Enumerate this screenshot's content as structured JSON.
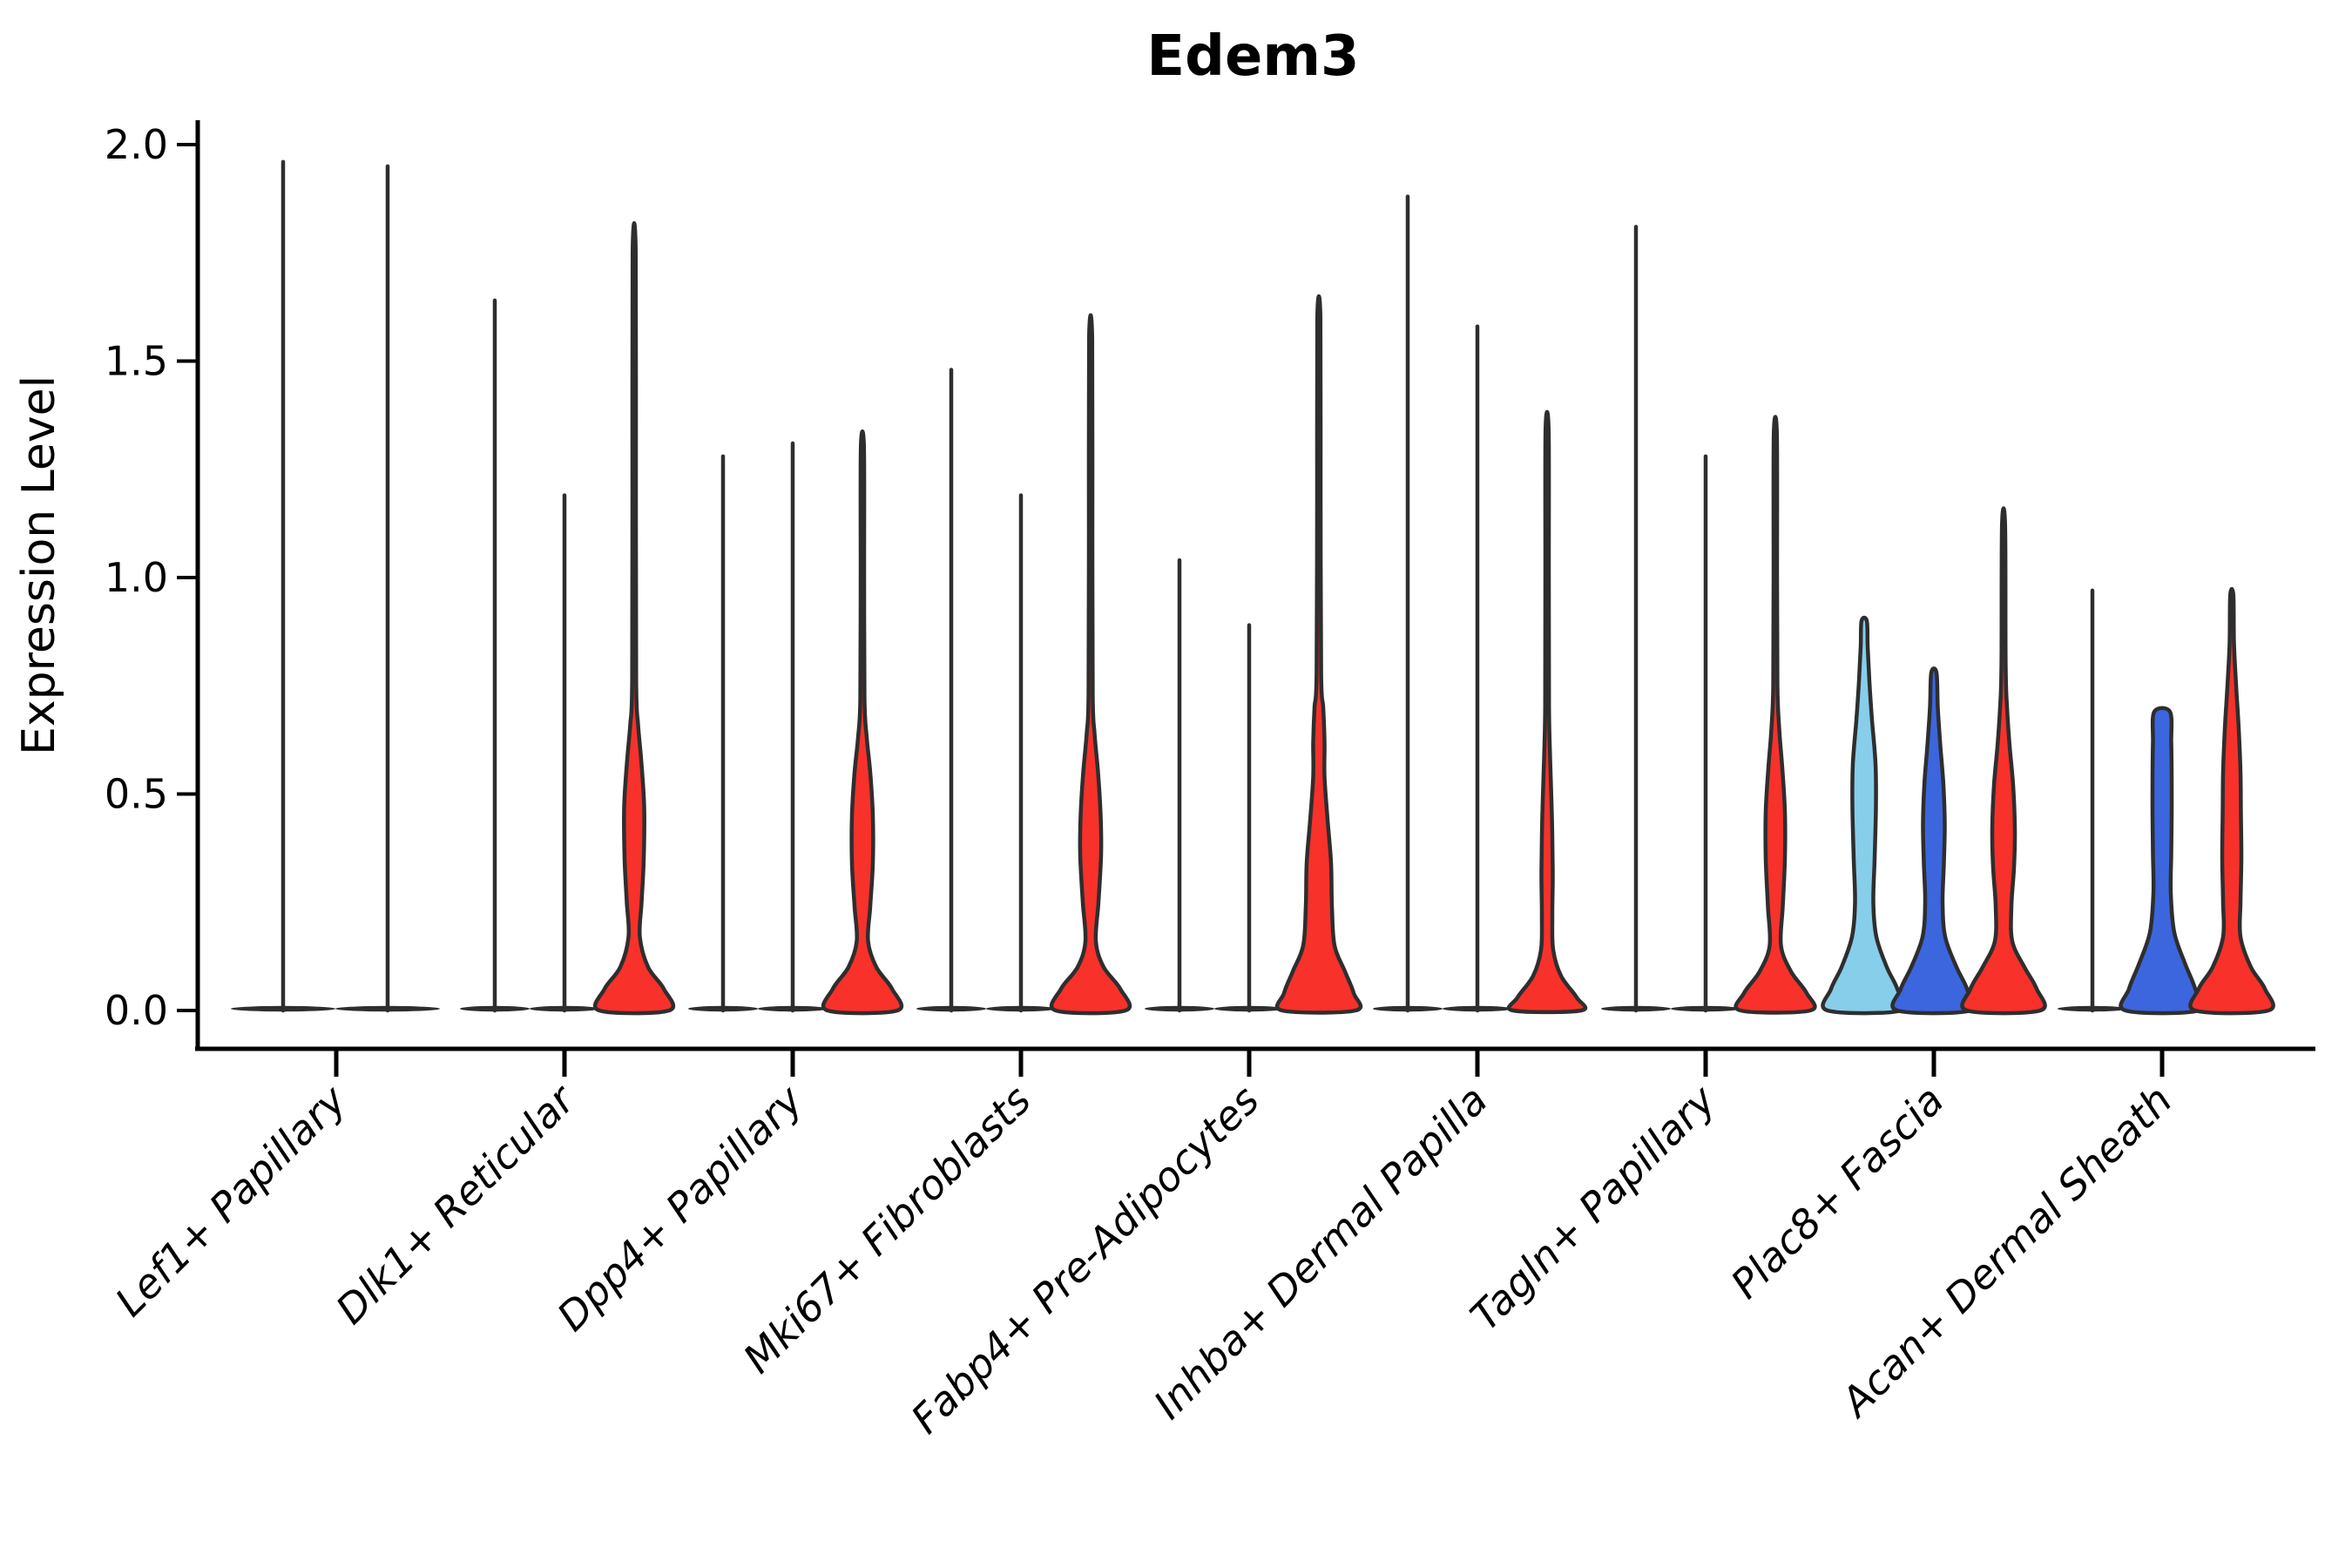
{
  "title": "Edem3",
  "axes": {
    "y_label": "Expression Level",
    "y_tick_labels": [
      "0.0",
      "0.5",
      "1.0",
      "1.5",
      "2.0"
    ],
    "y_tick_values": [
      0,
      0.5,
      1.0,
      1.5,
      2.0
    ],
    "x_categories": [
      "Lef1+ Papillary",
      "Dlk1+ Reticular",
      "Dpp4+ Papillary",
      "Mki67+ Fibroblasts",
      "Fabp4+ Pre-Adipocytes",
      "Inhba+ Dermal Papilla",
      "Tagln+ Papillary",
      "Plac8+ Fascia",
      "Acan+ Dermal Sheath"
    ],
    "ylim": [
      0,
      2.0
    ]
  },
  "colors": {
    "red": "#f8312b",
    "blue": "#3c66de",
    "lightblue": "#87ceeb",
    "dark": "#2e2e2e",
    "axis": "#000000"
  },
  "chart_data": {
    "type": "violin",
    "title": "Edem3",
    "ylabel": "Expression Level",
    "ylim": [
      0,
      2.0
    ],
    "grid": false,
    "legend": "none",
    "groups": [
      {
        "label": "Lef1+ Papillary",
        "violins": [
          {
            "kind": "line",
            "color": "dark",
            "max": 1.96,
            "base_halfwidth": 60,
            "offset": -61
          },
          {
            "kind": "line",
            "color": "dark",
            "max": 1.95,
            "base_halfwidth": 60,
            "offset": 59
          }
        ]
      },
      {
        "label": "Dlk1+ Reticular",
        "violins": [
          {
            "kind": "line",
            "color": "dark",
            "max": 1.64,
            "base_halfwidth": 40,
            "offset": -80
          },
          {
            "kind": "line",
            "color": "dark",
            "max": 1.19,
            "base_halfwidth": 40,
            "offset": 0
          },
          {
            "kind": "violin",
            "color": "red",
            "max": 1.75,
            "offset": 80,
            "profile": [
              [
                0,
                40
              ],
              [
                0.05,
                34
              ],
              [
                0.1,
                16
              ],
              [
                0.17,
                6.5
              ],
              [
                0.25,
                8.5
              ],
              [
                0.35,
                11
              ],
              [
                0.47,
                11.5
              ],
              [
                0.58,
                8
              ],
              [
                0.66,
                4.5
              ],
              [
                0.76,
                2.3
              ],
              [
                1.2,
                2
              ],
              [
                1.75,
                1.8
              ]
            ]
          }
        ]
      },
      {
        "label": "Dpp4+ Papillary",
        "violins": [
          {
            "kind": "line",
            "color": "dark",
            "max": 1.28,
            "base_halfwidth": 40,
            "offset": -80
          },
          {
            "kind": "line",
            "color": "dark",
            "max": 1.31,
            "base_halfwidth": 40,
            "offset": 0
          },
          {
            "kind": "violin",
            "color": "red",
            "max": 1.3,
            "offset": 80,
            "profile": [
              [
                0,
                40
              ],
              [
                0.05,
                34
              ],
              [
                0.1,
                16
              ],
              [
                0.16,
                6.5
              ],
              [
                0.24,
                9
              ],
              [
                0.34,
                12
              ],
              [
                0.45,
                12
              ],
              [
                0.55,
                9
              ],
              [
                0.63,
                5
              ],
              [
                0.72,
                2.4
              ],
              [
                1.0,
                2
              ],
              [
                1.3,
                1.8
              ]
            ]
          }
        ]
      },
      {
        "label": "Mki67+ Fibroblasts",
        "violins": [
          {
            "kind": "line",
            "color": "dark",
            "max": 1.48,
            "base_halfwidth": 40,
            "offset": -80
          },
          {
            "kind": "line",
            "color": "dark",
            "max": 1.19,
            "base_halfwidth": 40,
            "offset": 0
          },
          {
            "kind": "violin",
            "color": "red",
            "max": 1.55,
            "offset": 80,
            "profile": [
              [
                0,
                40
              ],
              [
                0.05,
                34
              ],
              [
                0.1,
                15
              ],
              [
                0.16,
                6
              ],
              [
                0.25,
                9
              ],
              [
                0.36,
                12
              ],
              [
                0.45,
                11.5
              ],
              [
                0.55,
                8.5
              ],
              [
                0.64,
                4.5
              ],
              [
                0.73,
                2.4
              ],
              [
                1.1,
                2
              ],
              [
                1.55,
                1.8
              ]
            ]
          }
        ]
      },
      {
        "label": "Fabp4+ Pre-Adipocytes",
        "violins": [
          {
            "kind": "line",
            "color": "dark",
            "max": 1.04,
            "base_halfwidth": 40,
            "offset": -80
          },
          {
            "kind": "line",
            "color": "dark",
            "max": 0.89,
            "base_halfwidth": 40,
            "offset": 0
          },
          {
            "kind": "violin",
            "color": "red",
            "max": 1.6,
            "offset": 80,
            "profile": [
              [
                0,
                42
              ],
              [
                0.04,
                40
              ],
              [
                0.09,
                30
              ],
              [
                0.15,
                18
              ],
              [
                0.24,
                15
              ],
              [
                0.34,
                14
              ],
              [
                0.44,
                10
              ],
              [
                0.54,
                6.5
              ],
              [
                0.62,
                6.5
              ],
              [
                0.7,
                5
              ],
              [
                0.78,
                2.6
              ],
              [
                1.2,
                2
              ],
              [
                1.6,
                1.8
              ]
            ]
          }
        ]
      },
      {
        "label": "Inhba+ Dermal Papilla",
        "violins": [
          {
            "kind": "line",
            "color": "dark",
            "max": 1.88,
            "base_halfwidth": 40,
            "offset": -80
          },
          {
            "kind": "line",
            "color": "dark",
            "max": 1.58,
            "base_halfwidth": 40,
            "offset": 0
          },
          {
            "kind": "violin",
            "color": "red",
            "max": 1.34,
            "offset": 80,
            "profile": [
              [
                0,
                39
              ],
              [
                0.03,
                34
              ],
              [
                0.08,
                16
              ],
              [
                0.14,
                7
              ],
              [
                0.22,
                6
              ],
              [
                0.32,
                6.5
              ],
              [
                0.45,
                5.5
              ],
              [
                0.58,
                3.5
              ],
              [
                0.7,
                2.2
              ],
              [
                1.0,
                2
              ],
              [
                1.34,
                1.8
              ]
            ]
          }
        ]
      },
      {
        "label": "Tagln+ Papillary",
        "violins": [
          {
            "kind": "line",
            "color": "dark",
            "max": 1.81,
            "base_halfwidth": 40,
            "offset": -80
          },
          {
            "kind": "line",
            "color": "dark",
            "max": 1.28,
            "base_halfwidth": 40,
            "offset": 0
          },
          {
            "kind": "violin",
            "color": "red",
            "max": 1.33,
            "offset": 80,
            "profile": [
              [
                0,
                40
              ],
              [
                0.04,
                36
              ],
              [
                0.09,
                18
              ],
              [
                0.15,
                6.5
              ],
              [
                0.24,
                8.5
              ],
              [
                0.35,
                11
              ],
              [
                0.46,
                11
              ],
              [
                0.56,
                8
              ],
              [
                0.65,
                4.5
              ],
              [
                0.75,
                2.4
              ],
              [
                1.0,
                2
              ],
              [
                1.33,
                1.8
              ]
            ]
          }
        ]
      },
      {
        "label": "Plac8+ Fascia",
        "violins": [
          {
            "kind": "violin",
            "color": "lightblue",
            "max": 0.9,
            "offset": -80,
            "profile": [
              [
                0,
                42
              ],
              [
                0.05,
                38
              ],
              [
                0.1,
                26
              ],
              [
                0.17,
                14
              ],
              [
                0.25,
                10.5
              ],
              [
                0.35,
                12
              ],
              [
                0.47,
                13.5
              ],
              [
                0.57,
                13
              ],
              [
                0.67,
                9
              ],
              [
                0.76,
                6
              ],
              [
                0.84,
                4
              ],
              [
                0.9,
                3
              ]
            ]
          },
          {
            "kind": "violin",
            "color": "blue",
            "max": 0.78,
            "offset": 0,
            "profile": [
              [
                0,
                42
              ],
              [
                0.05,
                38
              ],
              [
                0.1,
                26
              ],
              [
                0.17,
                13
              ],
              [
                0.25,
                10
              ],
              [
                0.34,
                11.5
              ],
              [
                0.43,
                12.5
              ],
              [
                0.52,
                11
              ],
              [
                0.61,
                7.5
              ],
              [
                0.7,
                4.5
              ],
              [
                0.78,
                3
              ]
            ]
          },
          {
            "kind": "violin",
            "color": "red",
            "max": 1.12,
            "offset": 80,
            "profile": [
              [
                0,
                42
              ],
              [
                0.05,
                38
              ],
              [
                0.1,
                24
              ],
              [
                0.16,
                10
              ],
              [
                0.24,
                9
              ],
              [
                0.33,
                12
              ],
              [
                0.42,
                13
              ],
              [
                0.52,
                11
              ],
              [
                0.61,
                7
              ],
              [
                0.7,
                4
              ],
              [
                0.8,
                2.4
              ],
              [
                1.12,
                1.8
              ]
            ]
          }
        ]
      },
      {
        "label": "Acan+ Dermal Sheath",
        "violins": [
          {
            "kind": "line",
            "color": "dark",
            "max": 0.97,
            "base_halfwidth": 40,
            "offset": -80
          },
          {
            "kind": "violin",
            "color": "blue",
            "max": 0.69,
            "offset": 0,
            "profile": [
              [
                0,
                42
              ],
              [
                0.05,
                38
              ],
              [
                0.11,
                26
              ],
              [
                0.18,
                14
              ],
              [
                0.27,
                10
              ],
              [
                0.36,
                10.5
              ],
              [
                0.45,
                11
              ],
              [
                0.54,
                11
              ],
              [
                0.62,
                10.5
              ],
              [
                0.69,
                9
              ]
            ]
          },
          {
            "kind": "violin",
            "color": "red",
            "max": 0.96,
            "offset": 80,
            "profile": [
              [
                0,
                42
              ],
              [
                0.05,
                38
              ],
              [
                0.1,
                22
              ],
              [
                0.17,
                10
              ],
              [
                0.25,
                10
              ],
              [
                0.35,
                11
              ],
              [
                0.45,
                10.5
              ],
              [
                0.55,
                10
              ],
              [
                0.65,
                8
              ],
              [
                0.75,
                5
              ],
              [
                0.85,
                2.5
              ],
              [
                0.96,
                1.8
              ]
            ]
          }
        ]
      }
    ]
  }
}
